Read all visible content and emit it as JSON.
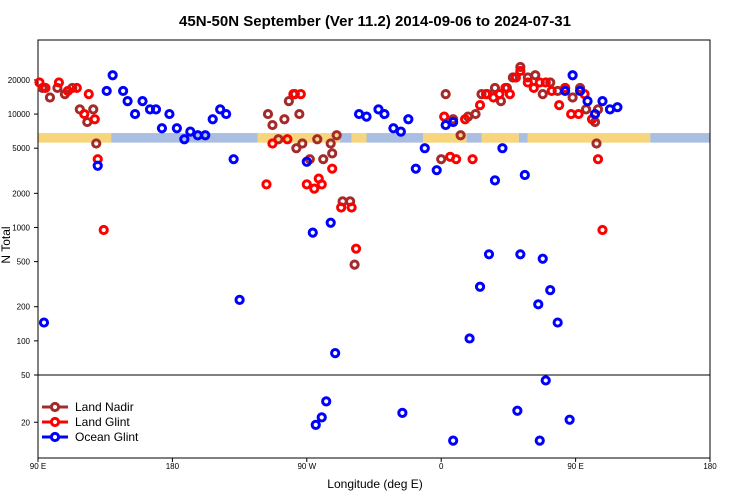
{
  "chart_data": {
    "type": "scatter",
    "title": "45N-50N September (Ver 11.2)   2014-09-06 to 2024-07-31",
    "xlabel": "Longitude (deg E)",
    "ylabel": "N Total",
    "x_ticks": [
      {
        "lon": 90,
        "label": "90 E"
      },
      {
        "lon": 180,
        "label": "180"
      },
      {
        "lon": 270,
        "label": "90 W"
      },
      {
        "lon": 360,
        "label": "0"
      },
      {
        "lon": 450,
        "label": "90 E"
      },
      {
        "lon": 540,
        "label": "180"
      }
    ],
    "xlim": [
      90,
      540
    ],
    "upper_panel": {
      "scale": "log",
      "ylim": [
        50,
        45000
      ],
      "y_ticks": [
        100,
        200,
        500,
        1000,
        2000,
        5000,
        10000,
        20000
      ],
      "y_tick_labels": [
        "100",
        "200",
        "500",
        "1000",
        "2000",
        "5000",
        "10000",
        "20000"
      ]
    },
    "lower_panel": {
      "scale": "log",
      "ylim": [
        10,
        50
      ],
      "y_ticks": [
        20,
        50
      ],
      "y_tick_labels": [
        "20",
        "50"
      ]
    },
    "land_band": {
      "y_range": [
        5600,
        6800
      ],
      "colors": {
        "land": "#f7d57c",
        "ocean": "#a9bee0"
      },
      "segments": [
        {
          "from": 90,
          "to": 139,
          "kind": "land"
        },
        {
          "from": 139,
          "to": 237,
          "kind": "ocean"
        },
        {
          "from": 237,
          "to": 292,
          "kind": "land"
        },
        {
          "from": 292,
          "to": 300,
          "kind": "ocean"
        },
        {
          "from": 300,
          "to": 310,
          "kind": "land"
        },
        {
          "from": 310,
          "to": 348,
          "kind": "ocean"
        },
        {
          "from": 348,
          "to": 377,
          "kind": "land"
        },
        {
          "from": 377,
          "to": 387,
          "kind": "ocean"
        },
        {
          "from": 387,
          "to": 412,
          "kind": "land"
        },
        {
          "from": 412,
          "to": 418,
          "kind": "ocean"
        },
        {
          "from": 418,
          "to": 500,
          "kind": "land"
        },
        {
          "from": 500,
          "to": 540,
          "kind": "ocean"
        }
      ]
    },
    "series": [
      {
        "name": "Land Nadir",
        "color": "#a52a2a",
        "points": [
          [
            93,
            17000
          ],
          [
            98,
            14000
          ],
          [
            103,
            17000
          ],
          [
            108,
            15000
          ],
          [
            113,
            17000
          ],
          [
            118,
            11000
          ],
          [
            123,
            8500
          ],
          [
            127,
            11000
          ],
          [
            129,
            5500
          ],
          [
            244,
            10000
          ],
          [
            247,
            8000
          ],
          [
            251,
            6000
          ],
          [
            255,
            9000
          ],
          [
            258,
            13000
          ],
          [
            262,
            15000
          ],
          [
            265,
            10000
          ],
          [
            263,
            5000
          ],
          [
            267,
            5500
          ],
          [
            272,
            4000
          ],
          [
            277,
            6000
          ],
          [
            281,
            4000
          ],
          [
            286,
            5500
          ],
          [
            290,
            6500
          ],
          [
            287,
            4500
          ],
          [
            294,
            1700
          ],
          [
            299,
            1700
          ],
          [
            302,
            470
          ],
          [
            360,
            4000
          ],
          [
            363,
            15000
          ],
          [
            368,
            9000
          ],
          [
            373,
            6500
          ],
          [
            378,
            9500
          ],
          [
            383,
            10000
          ],
          [
            387,
            15000
          ],
          [
            391,
            15000
          ],
          [
            396,
            17000
          ],
          [
            400,
            13000
          ],
          [
            404,
            17000
          ],
          [
            408,
            21000
          ],
          [
            413,
            26000
          ],
          [
            418,
            21000
          ],
          [
            423,
            22000
          ],
          [
            428,
            15000
          ],
          [
            433,
            19000
          ],
          [
            438,
            16000
          ],
          [
            443,
            17000
          ],
          [
            448,
            14000
          ],
          [
            453,
            17000
          ],
          [
            457,
            11000
          ],
          [
            463,
            8500
          ],
          [
            465,
            11000
          ],
          [
            464,
            5500
          ]
        ]
      },
      {
        "name": "Land Glint",
        "color": "#ff0000",
        "points": [
          [
            91,
            19000
          ],
          [
            95,
            17000
          ],
          [
            104,
            19000
          ],
          [
            110,
            16000
          ],
          [
            116,
            17000
          ],
          [
            121,
            10000
          ],
          [
            124,
            15000
          ],
          [
            128,
            9000
          ],
          [
            130,
            4000
          ],
          [
            134,
            950
          ],
          [
            243,
            2400
          ],
          [
            247,
            5500
          ],
          [
            257,
            6000
          ],
          [
            261,
            15000
          ],
          [
            266,
            15000
          ],
          [
            270,
            2400
          ],
          [
            275,
            2200
          ],
          [
            278,
            2700
          ],
          [
            280,
            2400
          ],
          [
            287,
            3300
          ],
          [
            293,
            1500
          ],
          [
            300,
            1500
          ],
          [
            303,
            650
          ],
          [
            362,
            9500
          ],
          [
            366,
            4200
          ],
          [
            370,
            4000
          ],
          [
            376,
            9000
          ],
          [
            381,
            4000
          ],
          [
            386,
            12000
          ],
          [
            390,
            15000
          ],
          [
            395,
            14000
          ],
          [
            399,
            15000
          ],
          [
            403,
            17000
          ],
          [
            406,
            15000
          ],
          [
            410,
            21000
          ],
          [
            413,
            24000
          ],
          [
            418,
            19000
          ],
          [
            422,
            17000
          ],
          [
            426,
            19000
          ],
          [
            430,
            19000
          ],
          [
            434,
            16000
          ],
          [
            439,
            12000
          ],
          [
            443,
            17000
          ],
          [
            447,
            10000
          ],
          [
            452,
            10000
          ],
          [
            456,
            15000
          ],
          [
            461,
            9000
          ],
          [
            465,
            4000
          ],
          [
            468,
            950
          ]
        ]
      },
      {
        "name": "Ocean Glint",
        "color": "#0000ff",
        "points": [
          [
            94,
            145
          ],
          [
            140,
            22000
          ],
          [
            130,
            3500
          ],
          [
            136,
            16000
          ],
          [
            147,
            16000
          ],
          [
            150,
            13000
          ],
          [
            155,
            10000
          ],
          [
            160,
            13000
          ],
          [
            165,
            11000
          ],
          [
            169,
            11000
          ],
          [
            173,
            7500
          ],
          [
            178,
            10000
          ],
          [
            183,
            7500
          ],
          [
            188,
            6000
          ],
          [
            192,
            7000
          ],
          [
            197,
            6500
          ],
          [
            202,
            6500
          ],
          [
            207,
            9000
          ],
          [
            212,
            11000
          ],
          [
            216,
            10000
          ],
          [
            221,
            4000
          ],
          [
            225,
            230
          ],
          [
            270,
            3800
          ],
          [
            274,
            900
          ],
          [
            286,
            1100
          ],
          [
            289,
            78
          ],
          [
            305,
            10000
          ],
          [
            310,
            9500
          ],
          [
            318,
            11000
          ],
          [
            322,
            10000
          ],
          [
            328,
            7500
          ],
          [
            333,
            7000
          ],
          [
            338,
            9000
          ],
          [
            343,
            3300
          ],
          [
            349,
            5000
          ],
          [
            357,
            3200
          ],
          [
            363,
            8000
          ],
          [
            368,
            8500
          ],
          [
            379,
            105
          ],
          [
            386,
            300
          ],
          [
            392,
            580
          ],
          [
            396,
            2600
          ],
          [
            401,
            5000
          ],
          [
            413,
            580
          ],
          [
            416,
            2900
          ],
          [
            425,
            210
          ],
          [
            428,
            530
          ],
          [
            433,
            280
          ],
          [
            438,
            145
          ],
          [
            443,
            16000
          ],
          [
            448,
            22000
          ],
          [
            453,
            16000
          ],
          [
            458,
            13000
          ],
          [
            463,
            10000
          ],
          [
            468,
            13000
          ],
          [
            473,
            11000
          ],
          [
            478,
            11500
          ],
          [
            276,
            19
          ],
          [
            280,
            22
          ],
          [
            283,
            30
          ],
          [
            334,
            24
          ],
          [
            368,
            14
          ],
          [
            411,
            25
          ],
          [
            426,
            14
          ],
          [
            430,
            45
          ],
          [
            446,
            21
          ]
        ]
      }
    ],
    "legend": {
      "placement": "bottom-left",
      "entries": [
        "Land Nadir",
        "Land Glint",
        "Ocean Glint"
      ]
    }
  }
}
